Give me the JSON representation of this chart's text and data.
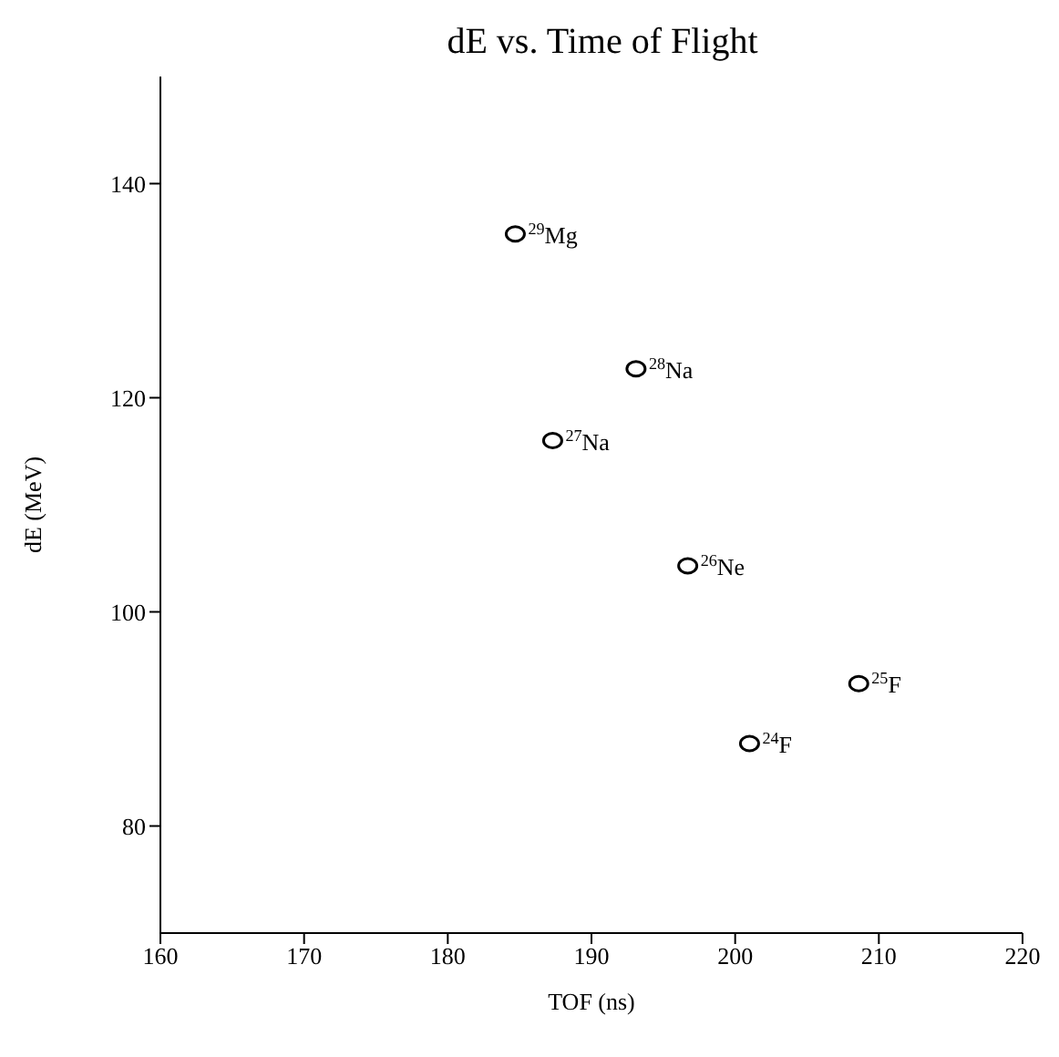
{
  "chart_data": {
    "type": "scatter",
    "title": "dE vs. Time of Flight",
    "xlabel": "TOF (ns)",
    "ylabel": "dE (MeV)",
    "x": [
      184.7,
      193.1,
      187.3,
      196.7,
      208.6,
      201.0
    ],
    "values": [
      135.3,
      122.7,
      116.0,
      104.3,
      93.3,
      87.7
    ],
    "color": "#000000",
    "marker": "circle",
    "grid": false,
    "legend": false,
    "xlim": [
      160,
      220
    ],
    "xticks": [
      160,
      170,
      180,
      190,
      200,
      210,
      220
    ],
    "ylim": [
      70,
      150
    ],
    "yticks": [
      80,
      100,
      120,
      140
    ],
    "annotations": [
      {
        "text": "$^{29}$Mg",
        "x": 184.7,
        "y": 135.3
      },
      {
        "text": "$^{28}$Na",
        "x": 193.1,
        "y": 122.7
      },
      {
        "text": "$^{27}$Na",
        "x": 187.3,
        "y": 116.0
      },
      {
        "text": "$^{26}$Ne",
        "x": 196.7,
        "y": 104.3
      },
      {
        "text": "$^{25}$F",
        "x": 208.6,
        "y": 93.3
      },
      {
        "text": "$^{24}$F",
        "x": 201.0,
        "y": 87.7
      }
    ]
  }
}
